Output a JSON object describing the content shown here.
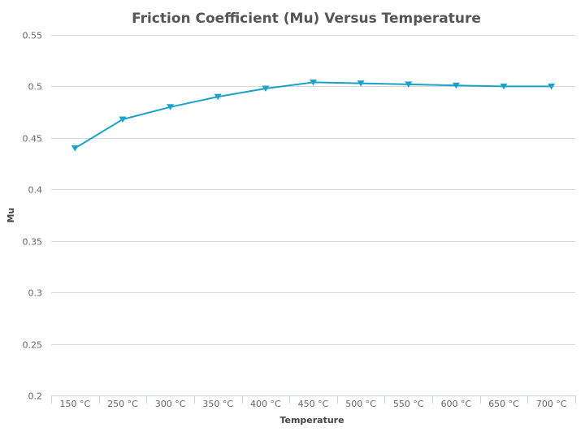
{
  "chart_data": {
    "type": "line",
    "title": "Friction Coefficient (Mu) Versus Temperature",
    "xlabel": "Temperature",
    "ylabel": "Mu",
    "categories": [
      "150 °C",
      "250 °C",
      "300 °C",
      "350 °C",
      "400 °C",
      "450 °C",
      "500 °C",
      "550 °C",
      "600 °C",
      "650 °C",
      "700 °C"
    ],
    "ylim": [
      0.2,
      0.55
    ],
    "yticks": [
      0.2,
      0.25,
      0.3,
      0.35,
      0.4,
      0.45,
      0.5,
      0.55
    ],
    "ytick_labels": [
      "0.2",
      "0.25",
      "0.3",
      "0.35",
      "0.4",
      "0.45",
      "0.5",
      "0.55"
    ],
    "grid": true,
    "series": [
      {
        "values": [
          0.44,
          0.468,
          0.48,
          0.49,
          0.498,
          0.504,
          0.503,
          0.502,
          0.501,
          0.5,
          0.5
        ],
        "color": "#19a3c8",
        "marker": "triangle-down"
      }
    ]
  }
}
